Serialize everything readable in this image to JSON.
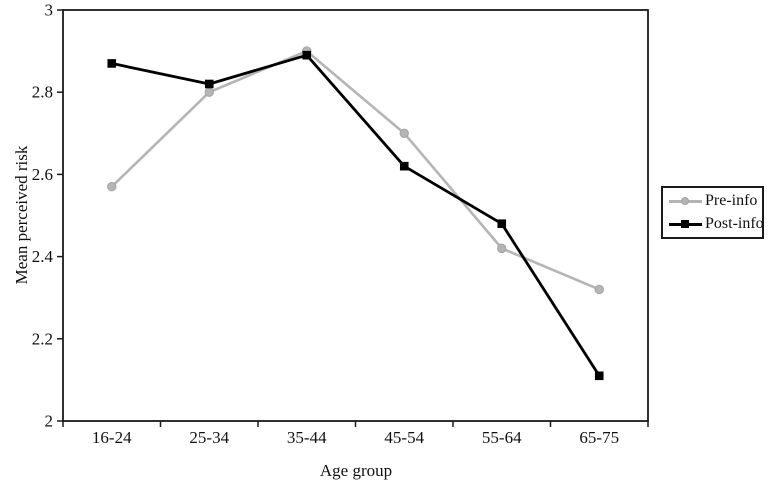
{
  "figure": {
    "background": "#ffffff",
    "axis_color": "#1a1a1a",
    "text_color": "#111111"
  },
  "chart_data": {
    "type": "line",
    "title": "",
    "xlabel": "Age group",
    "ylabel": "Mean perceived risk",
    "categories": [
      "16-24",
      "25-34",
      "35-44",
      "45-54",
      "55-64",
      "65-75"
    ],
    "series": [
      {
        "name": "Pre-info",
        "color": "#b5b5b5",
        "marker": "circle",
        "marker_edge": "#a3a3a3",
        "values": [
          2.57,
          2.8,
          2.9,
          2.7,
          2.42,
          2.32
        ]
      },
      {
        "name": "Post-info",
        "color": "#000000",
        "marker": "square",
        "marker_edge": "#000000",
        "values": [
          2.87,
          2.82,
          2.89,
          2.62,
          2.48,
          2.11
        ]
      }
    ],
    "ylim": [
      2,
      3
    ],
    "yticks": [
      2,
      2.2,
      2.4,
      2.6,
      2.8,
      3
    ],
    "ytick_labels": [
      "2",
      "2.2",
      "2.4",
      "2.6",
      "2.8",
      "3"
    ],
    "grid": false,
    "legend_position": "right-outside"
  }
}
